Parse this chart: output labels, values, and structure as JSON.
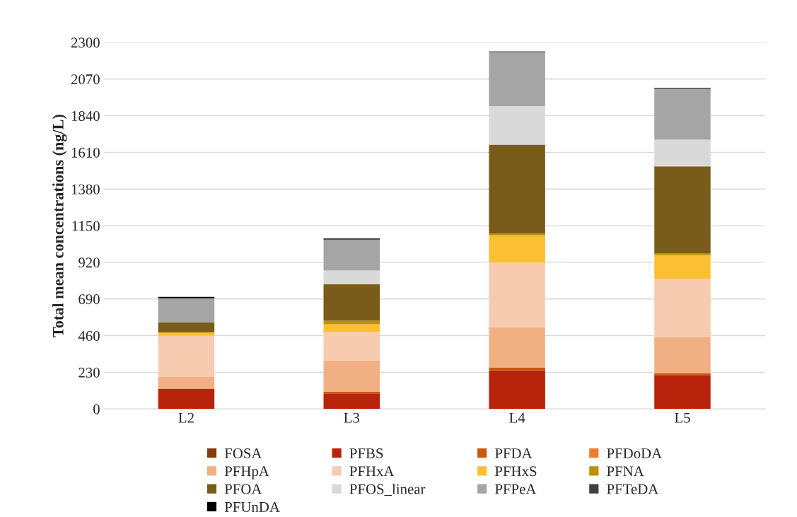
{
  "chart_data": {
    "type": "bar",
    "stacked": true,
    "ylabel": "Total mean concentrations (ng/L)",
    "categories": [
      "L2",
      "L3",
      "L4",
      "L5"
    ],
    "series": [
      {
        "name": "FOSA",
        "color": "#843c0c",
        "values": [
          0,
          0,
          0,
          0
        ]
      },
      {
        "name": "PFBS",
        "color": "#b8230c",
        "values": [
          127,
          98,
          243,
          213
        ]
      },
      {
        "name": "PFDA",
        "color": "#c55a11",
        "values": [
          0,
          9,
          15,
          10
        ]
      },
      {
        "name": "PFDoDA",
        "color": "#ed7d31",
        "values": [
          0,
          0,
          0,
          0
        ]
      },
      {
        "name": "PFHpA",
        "color": "#f0b084",
        "values": [
          74,
          198,
          254,
          227
        ]
      },
      {
        "name": "PFHxA",
        "color": "#f6cbb0",
        "values": [
          258,
          178,
          407,
          366
        ]
      },
      {
        "name": "PFHxS",
        "color": "#fbbf33",
        "values": [
          21,
          48,
          170,
          149
        ]
      },
      {
        "name": "PFNA",
        "color": "#bf9000",
        "values": [
          0,
          23,
          12,
          10
        ]
      },
      {
        "name": "PFOA",
        "color": "#7a5c1a",
        "values": [
          63,
          229,
          558,
          547
        ]
      },
      {
        "name": "PFOS_linear",
        "color": "#d9d9d9",
        "values": [
          null,
          86,
          241,
          167
        ]
      },
      {
        "name": "PFPeA",
        "color": "#a5a5a5",
        "values": [
          150,
          191,
          338,
          318
        ]
      },
      {
        "name": "PFTeDA",
        "color": "#404040",
        "values": [
          5,
          4,
          2,
          3
        ]
      },
      {
        "name": "PFUnDA",
        "color": "#000000",
        "values": [
          5,
          5,
          3,
          3
        ]
      }
    ],
    "ylim": [
      0,
      2300
    ],
    "yticks": [
      0,
      230,
      460,
      690,
      920,
      1150,
      1380,
      1610,
      1840,
      2070,
      2300
    ],
    "grid": "y",
    "legend": "bottom"
  }
}
